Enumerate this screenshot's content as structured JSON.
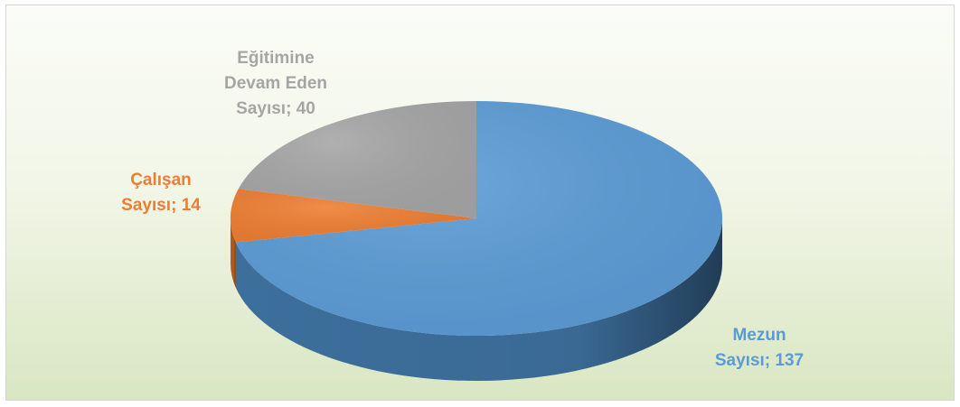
{
  "chart_data": {
    "type": "pie",
    "title": "",
    "variant": "3d",
    "start": "12 o'clock, clockwise",
    "slices": [
      {
        "name": "Mezun Sayısı",
        "value": 137,
        "color": "#5b9bd5",
        "side_color": "#3d6f9c",
        "label_lines": [
          "Mezun",
          "Sayısı; 137"
        ]
      },
      {
        "name": "Çalışan Sayısı",
        "value": 14,
        "color": "#ed7d31",
        "side_color": "#b55c20",
        "label_lines": [
          "Çalışan",
          "Sayısı; 14"
        ]
      },
      {
        "name": "Eğitimine Devam Eden Sayısı",
        "value": 40,
        "color": "#a5a5a5",
        "side_color": "#7a7a7a",
        "label_lines": [
          "Eğitimine",
          "Devam Eden",
          "Sayısı; 40"
        ]
      }
    ],
    "legend": "none",
    "background": [
      "#fbfcf8",
      "#d9e6c2"
    ]
  }
}
